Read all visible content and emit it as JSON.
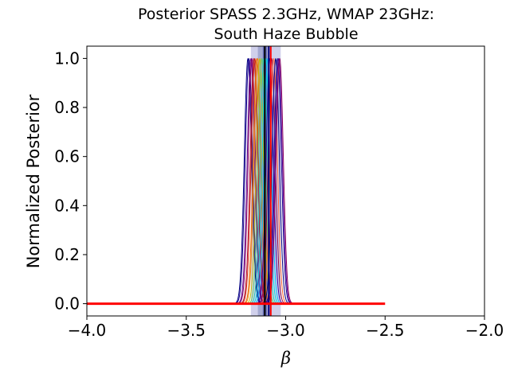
{
  "chart_data": {
    "type": "line",
    "title_line1": "Posterior SPASS 2.3GHz, WMAP 23GHz:",
    "title_line2": "South Haze Bubble",
    "xlabel": "β",
    "ylabel": "Normalized Posterior",
    "xlim": [
      -4.0,
      -2.0
    ],
    "ylim": [
      -0.05,
      1.05
    ],
    "x_ticks": [
      -4.0,
      -3.5,
      -3.0,
      -2.5,
      -2.0
    ],
    "x_tick_labels": [
      "−4.0",
      "−3.5",
      "−3.0",
      "−2.5",
      "−2.0"
    ],
    "y_ticks": [
      0.0,
      0.2,
      0.4,
      0.6,
      0.8,
      1.0
    ],
    "y_tick_labels": [
      "0.0",
      "0.2",
      "0.4",
      "0.6",
      "0.8",
      "1.0"
    ],
    "grid": false,
    "shaded_bands": [
      {
        "x0": -3.175,
        "x1": -3.025,
        "color": "#c8c8e8",
        "opacity": 0.85
      },
      {
        "x0": -3.14,
        "x1": -3.08,
        "color": "#9fa4ce",
        "opacity": 0.9
      },
      {
        "x0": -3.115,
        "x1": -3.095,
        "color": "#5b62b0",
        "opacity": 0.9
      }
    ],
    "posterior_curves": {
      "width_sigma": 0.018,
      "colors": [
        "#000080",
        "#1a0090",
        "#5a0090",
        "#8a0060",
        "#b00030",
        "#d03010",
        "#e86000",
        "#f09020",
        "#c0c000",
        "#60d060",
        "#20d0b0",
        "#00e0e0",
        "#00c0ff",
        "#3000a0",
        "#900040",
        "#ff6030"
      ],
      "centers": [
        -3.19,
        -3.185,
        -3.175,
        -3.17,
        -3.16,
        -3.155,
        -3.145,
        -3.14,
        -3.13,
        -3.12,
        -3.11,
        -3.1,
        -3.09,
        -3.08,
        -3.07,
        -3.06,
        -3.05,
        -3.04,
        -3.035,
        -3.03
      ]
    },
    "red_line": {
      "color": "#ff0000",
      "x": [
        -4.0,
        -2.5
      ],
      "y": [
        0.0,
        0.0
      ]
    },
    "vertical_lines": [
      {
        "x": -3.105,
        "color": "#000000"
      },
      {
        "x": -3.085,
        "color": "#000080"
      },
      {
        "x": -3.075,
        "color": "#ff0000"
      }
    ]
  }
}
